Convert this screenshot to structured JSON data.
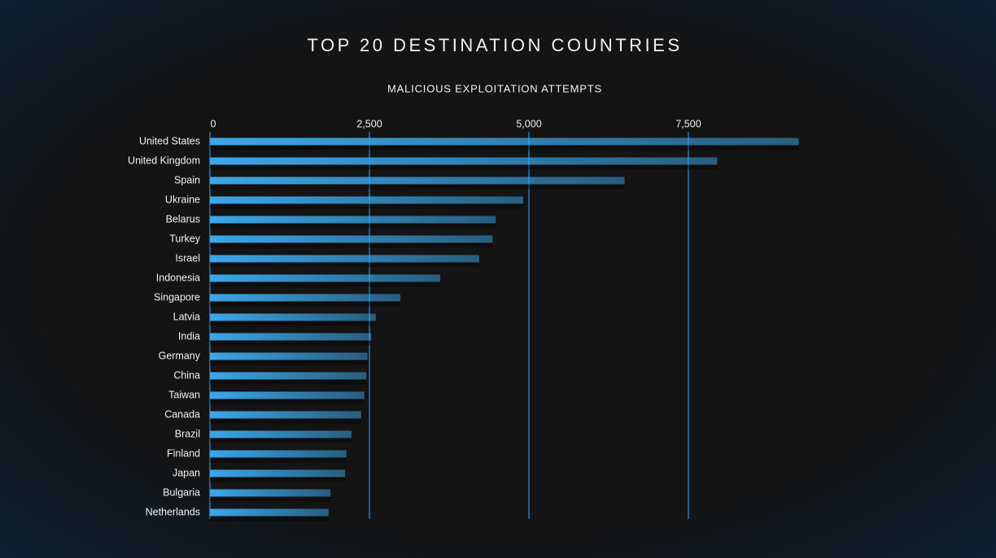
{
  "chart_data": {
    "type": "bar",
    "orientation": "horizontal",
    "title": "TOP 20 DESTINATION COUNTRIES",
    "subtitle": "MALICIOUS EXPLOITATION ATTEMPTS",
    "categories": [
      "United States",
      "United Kingdom",
      "Spain",
      "Ukraine",
      "Belarus",
      "Turkey",
      "Israel",
      "Indonesia",
      "Singapore",
      "Latvia",
      "India",
      "Germany",
      "China",
      "Taiwan",
      "Canada",
      "Brazil",
      "Finland",
      "Japan",
      "Bulgaria",
      "Netherlands"
    ],
    "values": [
      9230,
      7950,
      6500,
      4910,
      4480,
      4430,
      4220,
      3610,
      2985,
      2600,
      2530,
      2470,
      2450,
      2420,
      2370,
      2220,
      2140,
      2120,
      1890,
      1860
    ],
    "color": "#3ba7ea",
    "xlim": [
      0,
      10000
    ],
    "xticks": [
      0,
      {
        "value": 2500,
        "label": "2,500"
      },
      {
        "value": 5000,
        "label": "5,000"
      },
      {
        "value": 7500,
        "label": "7,500"
      }
    ],
    "grid": true
  }
}
